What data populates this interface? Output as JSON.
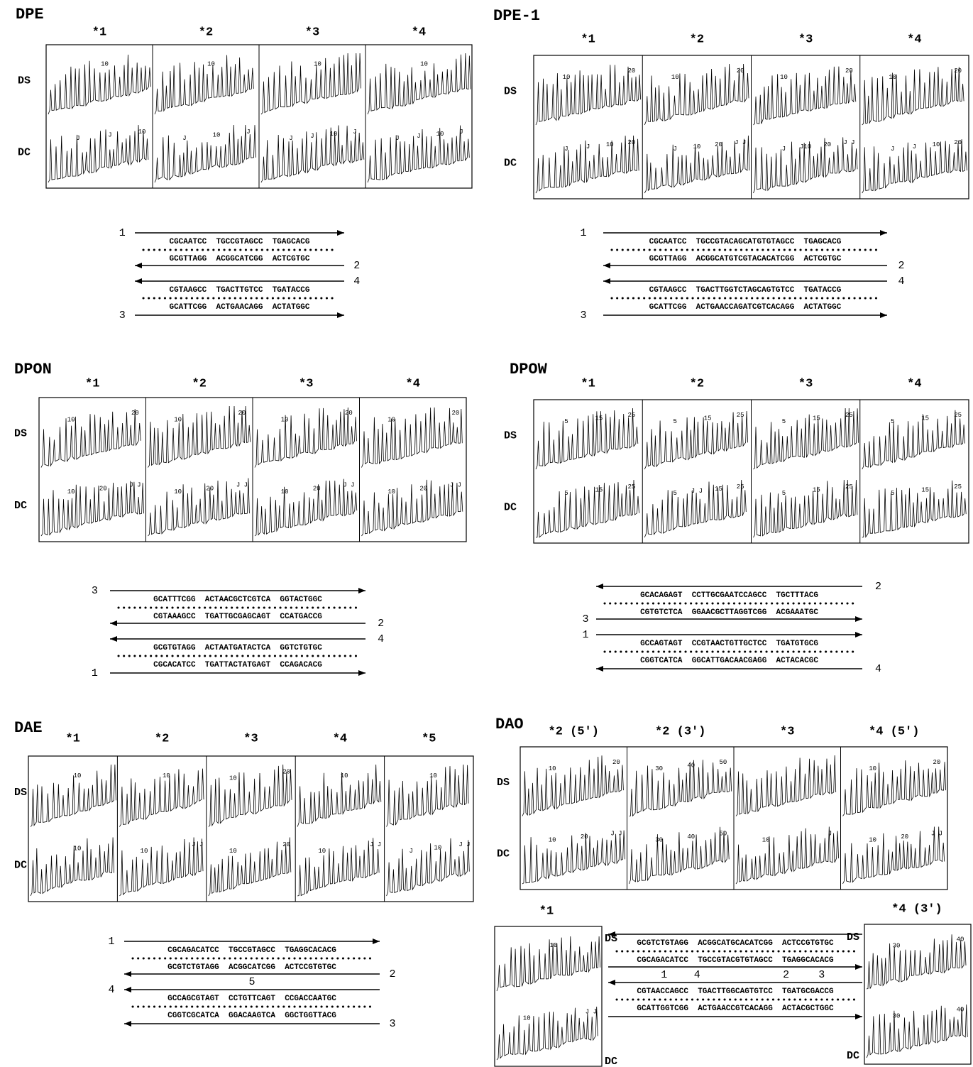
{
  "panels": [
    {
      "title": "DPE",
      "lanes": [
        "*1",
        "*2",
        "*3",
        "*4"
      ],
      "rows": [
        "DS",
        "DC"
      ],
      "ds_labels": [
        [
          "10"
        ],
        [
          "10"
        ],
        [
          "10"
        ],
        [
          "10"
        ]
      ],
      "dc_labels": [
        [
          "J",
          "J",
          "10"
        ],
        [
          "J",
          "10",
          "J"
        ],
        [
          "J",
          "J",
          "10",
          "J"
        ],
        [
          "J",
          "J",
          "10",
          "J"
        ]
      ],
      "strands": [
        1,
        2,
        4,
        3
      ],
      "sequence": [
        "CGCAATCC  TGCCGTAGCC  TGAGCACG",
        "GCGTTAGG  ACGGCATCGG  ACTCGTGC",
        "CGTAAGCC  TGACTTGTCC  TGATACCG",
        "GCATTCGG  ACTGAACAGG  ACTATGGC"
      ]
    },
    {
      "title": "DPE-1",
      "lanes": [
        "*1",
        "*2",
        "*3",
        "*4"
      ],
      "rows": [
        "DS",
        "DC"
      ],
      "ds_labels": [
        [
          "10",
          "20"
        ],
        [
          "10",
          "20"
        ],
        [
          "10",
          "20"
        ],
        [
          "10",
          "20"
        ]
      ],
      "dc_labels": [
        [
          "J",
          "J",
          "10",
          "20"
        ],
        [
          "J",
          "10",
          "20",
          "J J"
        ],
        [
          "J",
          "J10",
          "20",
          "J J"
        ],
        [
          "J",
          "J",
          "10",
          "20"
        ]
      ],
      "strands": [
        1,
        2,
        4,
        3
      ],
      "sequence": [
        "CGCAATCC  TGCCGTACAGCATGTGTAGCC  TGAGCACG",
        "GCGTTAGG  ACGGCATGTCGTACACATCGG  ACTCGTGC",
        "CGTAAGCC  TGACTTGGTCTAGCAGTGTCC  TGATACCG",
        "GCATTCGG  ACTGAACCAGATCGTCACAGG  ACTATGGC"
      ]
    },
    {
      "title": "DPON",
      "lanes": [
        "*1",
        "*2",
        "*3",
        "*4"
      ],
      "rows": [
        "DS",
        "DC"
      ],
      "ds_labels": [
        [
          "10",
          "20"
        ],
        [
          "10",
          "20"
        ],
        [
          "10",
          "20"
        ],
        [
          "10",
          "20"
        ]
      ],
      "dc_labels": [
        [
          "10",
          "20",
          "J J"
        ],
        [
          "10",
          "20",
          "J J"
        ],
        [
          "10",
          "20",
          "J J"
        ],
        [
          "10",
          "20",
          "J J"
        ]
      ],
      "strands": [
        3,
        2,
        4,
        1
      ],
      "sequence": [
        "GCATTTCGG  ACTAACGCTCGTCA  GGTACTGGC",
        "CGTAAAGCC  TGATTGCGAGCAGT  CCATGACCG",
        "GCGTGTAGG  ACTAATGATACTCA  GGTCTGTGC",
        "CGCACATCC  TGATTACTATGAGT  CCAGACACG"
      ]
    },
    {
      "title": "DPOW",
      "lanes": [
        "*1",
        "*2",
        "*3",
        "*4"
      ],
      "rows": [
        "DS",
        "DC"
      ],
      "ds_labels": [
        [
          "5",
          "15",
          "25"
        ],
        [
          "5",
          "15",
          "25"
        ],
        [
          "5",
          "15",
          "25"
        ],
        [
          "5",
          "15",
          "25"
        ]
      ],
      "dc_labels": [
        [
          "5",
          "15",
          "25"
        ],
        [
          "5",
          "J J",
          "15",
          "25"
        ],
        [
          "5",
          "15",
          "25"
        ],
        [
          "5",
          "15",
          "25"
        ]
      ],
      "strands": [
        2,
        3,
        1,
        4
      ],
      "sequence": [
        "GCACAGAGT  CCTTGCGAATCCAGCC  TGCTTTACG",
        "CGTGTCTCA  GGAACGCTTAGGTCGG  ACGAAATGC",
        "GCCAGTAGT  CCGTAACTGTTGCTCC  TGATGTGCG",
        "CGGTCATCA  GGCATTGACAACGAGG  ACTACACGC"
      ]
    },
    {
      "title": "DAE",
      "lanes": [
        "*1",
        "*2",
        "*3",
        "*4",
        "*5"
      ],
      "rows": [
        "DS",
        "DC"
      ],
      "ds_labels": [
        [
          "10"
        ],
        [
          "10"
        ],
        [
          "10",
          "20"
        ],
        [
          "10"
        ],
        [
          "10"
        ]
      ],
      "dc_labels": [
        [
          "10"
        ],
        [
          "10",
          "J J"
        ],
        [
          "10",
          "20"
        ],
        [
          "10",
          "J J"
        ],
        [
          "J",
          "10",
          "J J"
        ]
      ],
      "strands": [
        1,
        2,
        5,
        4,
        3
      ],
      "sequence": [
        "CGCAGACATCC  TGCCGTAGCC  TGAGGCACACG",
        "GCGTCTGTAGG  ACGGCATCGG  ACTCCGTGTGC",
        "GCCAGCGTAGT  CCTGTTCAGT  CCGACCAATGC",
        "CGGTCGCATCA  GGACAAGTCA  GGCTGGTTACG"
      ]
    },
    {
      "title": "DAO",
      "lanes": [
        "*2 (5')",
        "*2 (3')",
        "*3",
        "*4 (5')"
      ],
      "rows": [
        "DS",
        "DC"
      ],
      "ds_labels": [
        [
          "10",
          "20"
        ],
        [
          "30",
          "40",
          "50"
        ],
        [],
        [
          "10",
          "20"
        ]
      ],
      "dc_labels": [
        [
          "10",
          "20",
          "J J"
        ],
        [
          "30",
          "40",
          "50"
        ],
        [
          "10",
          "J"
        ],
        [
          "10",
          "20",
          "J J"
        ]
      ],
      "extra_lanes": [
        {
          "lane": "*1",
          "rows": [
            "DS",
            "DC"
          ],
          "ds_labels": [
            "10"
          ],
          "dc_labels": [
            "10",
            "J J"
          ]
        },
        {
          "lane": "*4 (3')",
          "rows": [
            "DS",
            "DC"
          ],
          "ds_labels": [
            "30",
            "40"
          ],
          "dc_labels": [
            "30",
            "40"
          ]
        }
      ],
      "strands": [
        1,
        4,
        2,
        3
      ],
      "sequence": [
        "GCGTCTGTAGG  ACGGCATGCACATCGG  ACTCCGTGTGC",
        "CGCAGACATCC  TGCCGTACGTGTAGCC  TGAGGCACACG",
        "CGTAACCAGCC  TGACTTGGCAGTGTCC  TGATGCGACCG",
        "GCATTGGTCGG  ACTGAACCGTCACAGG  ACTACGCTGGC"
      ]
    }
  ]
}
